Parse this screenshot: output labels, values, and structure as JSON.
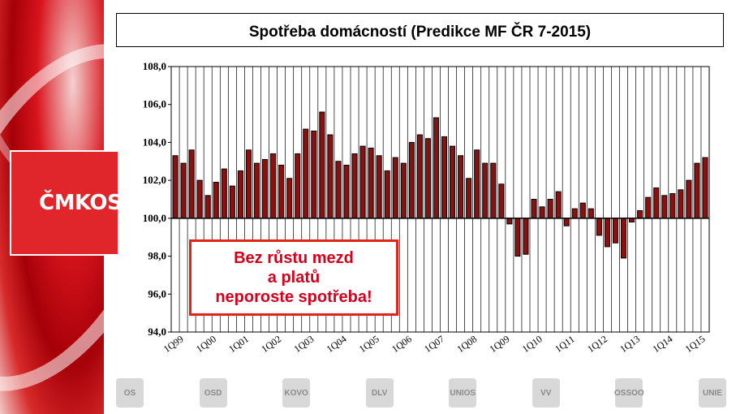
{
  "brand": {
    "logo_text": "ČMKOS",
    "accent": "#e0252b"
  },
  "callout": {
    "line1": "Bez růstu mezd",
    "line2": "a platů",
    "line3": "neporoste spotřeba!",
    "color": "#d6001c"
  },
  "footer_logos": [
    "OS",
    "OSD",
    "KOVO",
    "DLV",
    "UNIOS",
    "VV",
    "OSSOO",
    "UNIE"
  ],
  "chart_data": {
    "type": "bar",
    "title": "Spotřeba domácností (Predikce MF ČR 7-2015)",
    "xlabel": "",
    "ylabel": "",
    "ylim": [
      94,
      108
    ],
    "baseline": 100,
    "yticks": [
      "108,0",
      "106,0",
      "104,0",
      "102,0",
      "100,0",
      "98,0",
      "96,0",
      "94,0"
    ],
    "xtick_labels": [
      "1Q99",
      "1Q00",
      "1Q01",
      "1Q02",
      "1Q03",
      "1Q04",
      "1Q05",
      "1Q06",
      "1Q07",
      "1Q08",
      "1Q09",
      "1Q10",
      "1Q11",
      "1Q12",
      "1Q13",
      "1Q14",
      "1Q15"
    ],
    "bar_color": "#8b1010",
    "grid": "vertical",
    "values": [
      103.3,
      102.9,
      103.6,
      102.0,
      101.2,
      101.9,
      102.6,
      101.7,
      102.5,
      103.6,
      102.9,
      103.1,
      103.4,
      102.8,
      102.1,
      103.4,
      104.7,
      104.6,
      105.6,
      104.4,
      103.0,
      102.8,
      103.4,
      103.8,
      103.7,
      103.3,
      102.5,
      103.2,
      102.9,
      104.0,
      104.4,
      104.2,
      105.3,
      104.3,
      103.8,
      103.3,
      102.1,
      103.6,
      102.9,
      102.9,
      101.8,
      99.7,
      98.0,
      98.1,
      101.0,
      100.6,
      101.0,
      101.4,
      99.6,
      100.5,
      100.8,
      100.5,
      99.1,
      98.5,
      98.7,
      97.9,
      99.8,
      100.4,
      101.1,
      101.6,
      101.2,
      101.3,
      101.5,
      102.0,
      102.9,
      103.2
    ]
  }
}
